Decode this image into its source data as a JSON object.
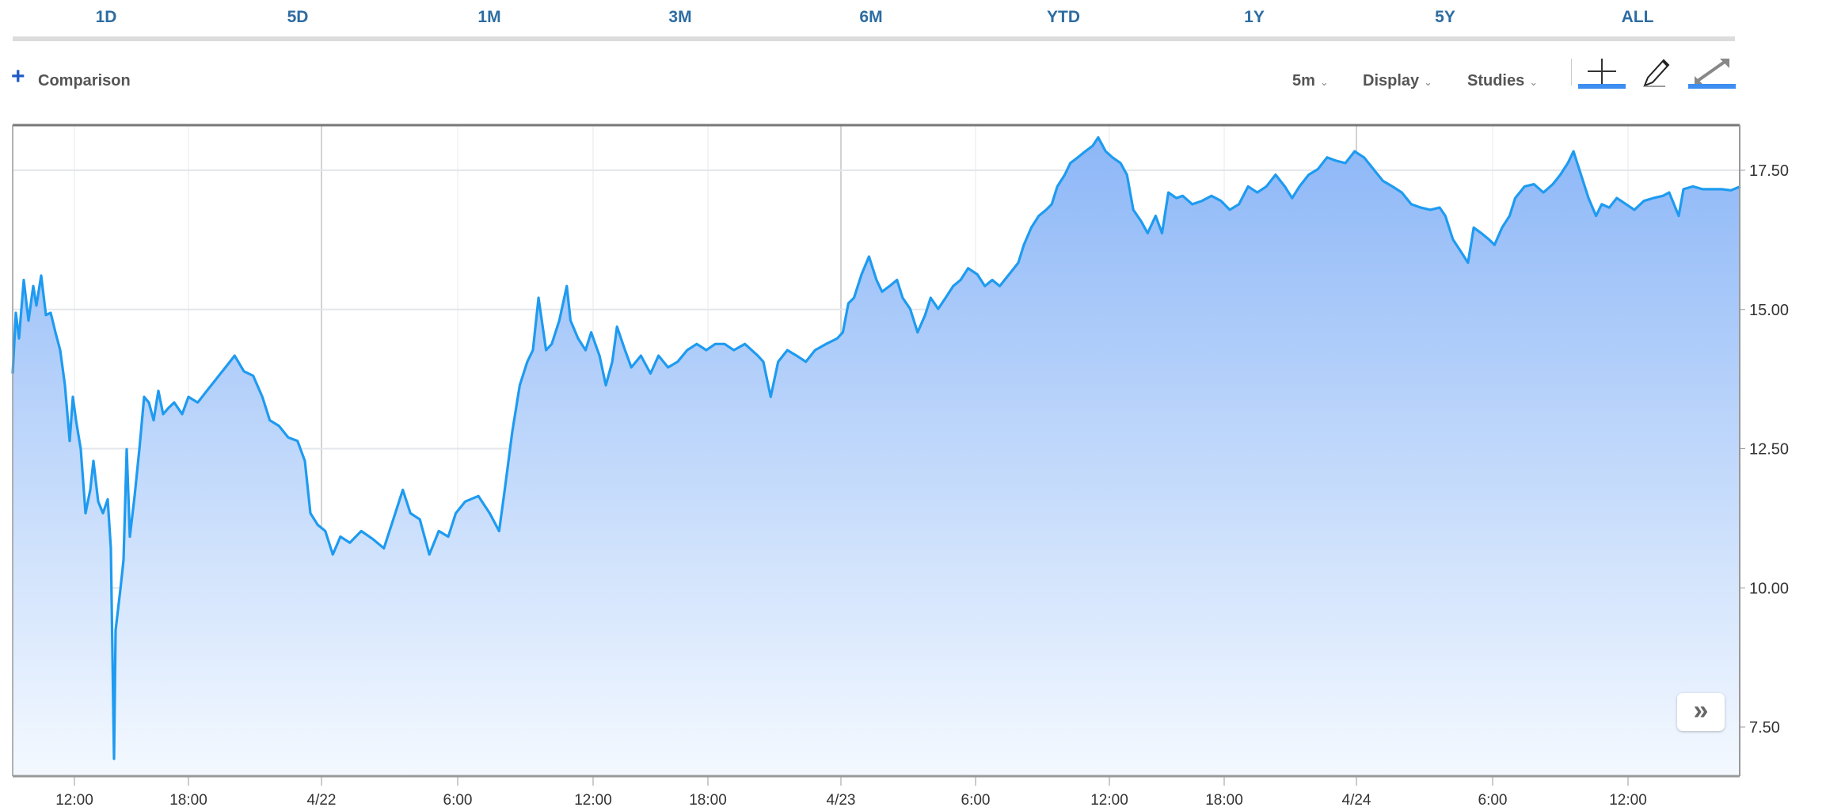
{
  "range_tabs": [
    "1D",
    "5D",
    "1M",
    "3M",
    "6M",
    "YTD",
    "1Y",
    "5Y",
    "ALL"
  ],
  "toolbar": {
    "comparison_label": "Comparison",
    "interval": "5m",
    "display": "Display",
    "studies": "Studies",
    "icons": [
      "crosshair-icon",
      "pencil-icon",
      "expand-icon"
    ]
  },
  "colors": {
    "line": "#1e9bf0",
    "fill_top": "#8db7f7",
    "fill_bottom": "#f4f9ff",
    "tab_text": "#2d6ca2",
    "active_underline": "#3d8ef0"
  },
  "chart_data": {
    "type": "area",
    "x_tick_labels": [
      "12:00",
      "18:00",
      "4/22",
      "6:00",
      "12:00",
      "18:00",
      "4/23",
      "6:00",
      "12:00",
      "18:00",
      "4/24",
      "6:00",
      "12:00"
    ],
    "y_tick_labels": [
      "17.50",
      "15.00",
      "12.50",
      "10.00",
      "7.50"
    ],
    "y_ticks": [
      17.5,
      15,
      12.5,
      10,
      7.5
    ],
    "ylim": [
      6.9,
      18.6
    ],
    "grid": true,
    "points": [
      [
        "4/21 08:45",
        13.85
      ],
      [
        "4/21 08:55",
        14.94
      ],
      [
        "4/21 09:05",
        14.48
      ],
      [
        "4/21 09:20",
        15.53
      ],
      [
        "4/21 09:35",
        14.8
      ],
      [
        "4/21 09:50",
        15.42
      ],
      [
        "4/21 10:00",
        15.07
      ],
      [
        "4/21 10:15",
        15.61
      ],
      [
        "4/21 10:30",
        14.9
      ],
      [
        "4/21 10:45",
        14.94
      ],
      [
        "4/21 11:00",
        14.59
      ],
      [
        "4/21 11:15",
        14.27
      ],
      [
        "4/21 11:30",
        13.64
      ],
      [
        "4/21 11:45",
        12.64
      ],
      [
        "4/21 11:55",
        13.43
      ],
      [
        "4/21 12:05",
        13.01
      ],
      [
        "4/21 12:20",
        12.49
      ],
      [
        "4/21 12:35",
        11.34
      ],
      [
        "4/21 12:50",
        11.76
      ],
      [
        "4/21 13:00",
        12.28
      ],
      [
        "4/21 13:15",
        11.55
      ],
      [
        "4/21 13:30",
        11.34
      ],
      [
        "4/21 13:45",
        11.59
      ],
      [
        "4/21 13:55",
        10.71
      ],
      [
        "4/21 14:05",
        6.93
      ],
      [
        "4/21 14:10",
        9.24
      ],
      [
        "4/21 14:25",
        9.97
      ],
      [
        "4/21 14:35",
        10.5
      ],
      [
        "4/21 14:45",
        12.49
      ],
      [
        "4/21 14:55",
        10.92
      ],
      [
        "4/21 15:10",
        11.65
      ],
      [
        "4/21 15:25",
        12.49
      ],
      [
        "4/21 15:40",
        13.43
      ],
      [
        "4/21 15:55",
        13.33
      ],
      [
        "4/21 16:10",
        13.01
      ],
      [
        "4/21 16:25",
        13.54
      ],
      [
        "4/21 16:40",
        13.12
      ],
      [
        "4/21 16:55",
        13.22
      ],
      [
        "4/21 17:15",
        13.33
      ],
      [
        "4/21 17:40",
        13.12
      ],
      [
        "4/21 18:00",
        13.43
      ],
      [
        "4/21 18:25",
        13.33
      ],
      [
        "4/21 18:50",
        13.54
      ],
      [
        "4/21 19:15",
        13.75
      ],
      [
        "4/21 19:40",
        13.96
      ],
      [
        "4/21 20:05",
        14.17
      ],
      [
        "4/21 20:30",
        13.89
      ],
      [
        "4/21 20:55",
        13.81
      ],
      [
        "4/21 21:20",
        13.43
      ],
      [
        "4/21 21:40",
        13.01
      ],
      [
        "4/21 22:05",
        12.91
      ],
      [
        "4/21 22:30",
        12.7
      ],
      [
        "4/21 22:55",
        12.64
      ],
      [
        "4/21 23:15",
        12.28
      ],
      [
        "4/21 23:30",
        11.34
      ],
      [
        "4/21 23:50",
        11.13
      ],
      [
        "4/22 00:10",
        11.02
      ],
      [
        "4/22 00:30",
        10.6
      ],
      [
        "4/22 00:50",
        10.92
      ],
      [
        "4/22 01:15",
        10.81
      ],
      [
        "4/22 01:45",
        11.02
      ],
      [
        "4/22 02:15",
        10.88
      ],
      [
        "4/22 02:45",
        10.71
      ],
      [
        "4/22 03:15",
        11.34
      ],
      [
        "4/22 03:35",
        11.76
      ],
      [
        "4/22 03:55",
        11.34
      ],
      [
        "4/22 04:20",
        11.23
      ],
      [
        "4/22 04:45",
        10.6
      ],
      [
        "4/22 05:10",
        11.02
      ],
      [
        "4/22 05:35",
        10.92
      ],
      [
        "4/22 05:55",
        11.34
      ],
      [
        "4/22 06:20",
        11.55
      ],
      [
        "4/22 06:55",
        11.65
      ],
      [
        "4/22 07:25",
        11.34
      ],
      [
        "4/22 07:50",
        11.02
      ],
      [
        "4/22 08:05",
        11.76
      ],
      [
        "4/22 08:25",
        12.8
      ],
      [
        "4/22 08:45",
        13.64
      ],
      [
        "4/22 09:05",
        14.06
      ],
      [
        "4/22 09:20",
        14.27
      ],
      [
        "4/22 09:35",
        15.21
      ],
      [
        "4/22 09:55",
        14.27
      ],
      [
        "4/22 10:10",
        14.38
      ],
      [
        "4/22 10:30",
        14.8
      ],
      [
        "4/22 10:50",
        15.42
      ],
      [
        "4/22 11:00",
        14.8
      ],
      [
        "4/22 11:20",
        14.48
      ],
      [
        "4/22 11:40",
        14.27
      ],
      [
        "4/22 11:55",
        14.59
      ],
      [
        "4/22 12:20",
        14.17
      ],
      [
        "4/22 12:40",
        13.64
      ],
      [
        "4/22 13:00",
        14.06
      ],
      [
        "4/22 13:15",
        14.69
      ],
      [
        "4/22 13:40",
        14.27
      ],
      [
        "4/22 14:00",
        13.96
      ],
      [
        "4/22 14:30",
        14.17
      ],
      [
        "4/22 15:00",
        13.85
      ],
      [
        "4/22 15:25",
        14.17
      ],
      [
        "4/22 15:55",
        13.96
      ],
      [
        "4/22 16:25",
        14.06
      ],
      [
        "4/22 16:55",
        14.27
      ],
      [
        "4/22 17:25",
        14.38
      ],
      [
        "4/22 17:55",
        14.27
      ],
      [
        "4/22 18:20",
        14.38
      ],
      [
        "4/22 18:45",
        14.38
      ],
      [
        "4/22 19:10",
        14.27
      ],
      [
        "4/22 19:40",
        14.38
      ],
      [
        "4/22 20:15",
        14.17
      ],
      [
        "4/22 20:30",
        14.06
      ],
      [
        "4/22 20:50",
        13.43
      ],
      [
        "4/22 21:10",
        14.06
      ],
      [
        "4/22 21:35",
        14.27
      ],
      [
        "4/22 22:00",
        14.17
      ],
      [
        "4/22 22:25",
        14.06
      ],
      [
        "4/22 22:50",
        14.27
      ],
      [
        "4/22 23:20",
        14.38
      ],
      [
        "4/22 23:50",
        14.48
      ],
      [
        "4/23 00:05",
        14.59
      ],
      [
        "4/23 00:20",
        15.11
      ],
      [
        "4/23 00:35",
        15.21
      ],
      [
        "4/23 00:55",
        15.63
      ],
      [
        "4/23 01:15",
        15.95
      ],
      [
        "4/23 01:35",
        15.53
      ],
      [
        "4/23 01:50",
        15.32
      ],
      [
        "4/23 02:10",
        15.42
      ],
      [
        "4/23 02:30",
        15.53
      ],
      [
        "4/23 02:45",
        15.21
      ],
      [
        "4/23 03:05",
        15.01
      ],
      [
        "4/23 03:25",
        14.59
      ],
      [
        "4/23 03:45",
        14.9
      ],
      [
        "4/23 04:00",
        15.21
      ],
      [
        "4/23 04:20",
        15.01
      ],
      [
        "4/23 04:40",
        15.21
      ],
      [
        "4/23 05:00",
        15.42
      ],
      [
        "4/23 05:20",
        15.53
      ],
      [
        "4/23 05:40",
        15.74
      ],
      [
        "4/23 06:05",
        15.63
      ],
      [
        "4/23 06:25",
        15.42
      ],
      [
        "4/23 06:45",
        15.53
      ],
      [
        "4/23 07:05",
        15.42
      ],
      [
        "4/23 07:30",
        15.63
      ],
      [
        "4/23 07:55",
        15.84
      ],
      [
        "4/23 08:10",
        16.16
      ],
      [
        "4/23 08:30",
        16.47
      ],
      [
        "4/23 08:50",
        16.68
      ],
      [
        "4/23 09:10",
        16.79
      ],
      [
        "4/23 09:25",
        16.89
      ],
      [
        "4/23 09:40",
        17.21
      ],
      [
        "4/23 10:00",
        17.42
      ],
      [
        "4/23 10:15",
        17.63
      ],
      [
        "4/23 10:35",
        17.73
      ],
      [
        "4/23 10:55",
        17.84
      ],
      [
        "4/23 11:15",
        17.94
      ],
      [
        "4/23 11:30",
        18.09
      ],
      [
        "4/23 11:50",
        17.84
      ],
      [
        "4/23 12:10",
        17.73
      ],
      [
        "4/23 12:35",
        17.63
      ],
      [
        "4/23 12:55",
        17.42
      ],
      [
        "4/23 13:15",
        16.79
      ],
      [
        "4/23 13:40",
        16.58
      ],
      [
        "4/23 14:00",
        16.37
      ],
      [
        "4/23 14:25",
        16.68
      ],
      [
        "4/23 14:45",
        16.37
      ],
      [
        "4/23 15:05",
        17.1
      ],
      [
        "4/23 15:30",
        17.0
      ],
      [
        "4/23 15:50",
        17.04
      ],
      [
        "4/23 16:20",
        16.89
      ],
      [
        "4/23 16:50",
        16.95
      ],
      [
        "4/23 17:20",
        17.04
      ],
      [
        "4/23 17:50",
        16.95
      ],
      [
        "4/23 18:15",
        16.79
      ],
      [
        "4/23 18:40",
        16.89
      ],
      [
        "4/23 19:05",
        17.21
      ],
      [
        "4/23 19:30",
        17.1
      ],
      [
        "4/23 19:55",
        17.21
      ],
      [
        "4/23 20:20",
        17.42
      ],
      [
        "4/23 20:45",
        17.21
      ],
      [
        "4/23 21:05",
        17.0
      ],
      [
        "4/23 21:25",
        17.21
      ],
      [
        "4/23 21:50",
        17.42
      ],
      [
        "4/23 22:15",
        17.52
      ],
      [
        "4/23 22:40",
        17.73
      ],
      [
        "4/23 23:05",
        17.67
      ],
      [
        "4/23 23:30",
        17.63
      ],
      [
        "4/23 23:55",
        17.84
      ],
      [
        "4/24 00:20",
        17.73
      ],
      [
        "4/24 00:45",
        17.52
      ],
      [
        "4/24 01:10",
        17.31
      ],
      [
        "4/24 01:35",
        17.21
      ],
      [
        "4/24 02:00",
        17.1
      ],
      [
        "4/24 02:25",
        16.89
      ],
      [
        "4/24 02:50",
        16.83
      ],
      [
        "4/24 03:15",
        16.79
      ],
      [
        "4/24 03:40",
        16.83
      ],
      [
        "4/24 03:55",
        16.68
      ],
      [
        "4/24 04:15",
        16.26
      ],
      [
        "4/24 04:35",
        16.05
      ],
      [
        "4/24 04:55",
        15.84
      ],
      [
        "4/24 05:10",
        16.47
      ],
      [
        "4/24 05:30",
        16.37
      ],
      [
        "4/24 05:50",
        16.26
      ],
      [
        "4/24 06:05",
        16.16
      ],
      [
        "4/24 06:25",
        16.47
      ],
      [
        "4/24 06:45",
        16.68
      ],
      [
        "4/24 07:00",
        17.0
      ],
      [
        "4/24 07:25",
        17.21
      ],
      [
        "4/24 07:50",
        17.25
      ],
      [
        "4/24 08:15",
        17.1
      ],
      [
        "4/24 08:40",
        17.25
      ],
      [
        "4/24 09:00",
        17.42
      ],
      [
        "4/24 09:20",
        17.63
      ],
      [
        "4/24 09:35",
        17.84
      ],
      [
        "4/24 09:55",
        17.42
      ],
      [
        "4/24 10:15",
        17.0
      ],
      [
        "4/24 10:35",
        16.68
      ],
      [
        "4/24 10:50",
        16.89
      ],
      [
        "4/24 11:10",
        16.83
      ],
      [
        "4/24 11:30",
        17.0
      ],
      [
        "4/24 11:55",
        16.89
      ],
      [
        "4/24 12:20",
        16.79
      ],
      [
        "4/24 12:50",
        16.95
      ],
      [
        "4/24 13:20",
        17.0
      ],
      [
        "4/24 13:50",
        17.04
      ],
      [
        "4/24 14:10",
        17.1
      ],
      [
        "4/24 14:40",
        16.68
      ],
      [
        "4/24 14:55",
        17.16
      ],
      [
        "4/24 15:25",
        17.21
      ],
      [
        "4/24 15:55",
        17.16
      ],
      [
        "4/24 16:25",
        17.16
      ],
      [
        "4/24 16:55",
        17.16
      ],
      [
        "4/24 17:25",
        17.14
      ],
      [
        "4/24 17:55",
        17.21
      ]
    ]
  }
}
